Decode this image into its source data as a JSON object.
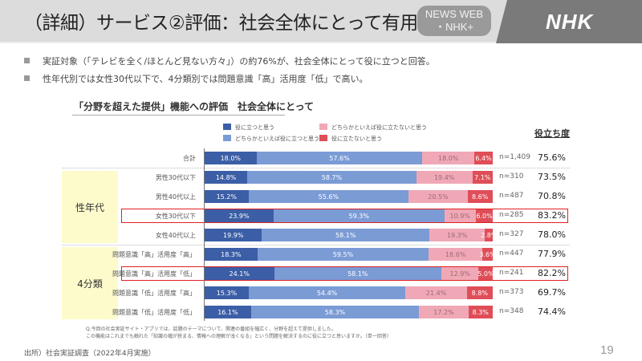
{
  "header": {
    "title": "（詳細）サービス②評価：社会全体にとって有用か",
    "badge_line1": "NEWS WEB",
    "badge_line2": "・NHK+",
    "logo": "NHK"
  },
  "bullets": [
    "実証対象（「テレビを全く/ほとんど見ない方々」）の約76%が、社会全体にとって役に立つと回答。",
    "性年代別では女性30代以下で、4分類別では問題意識「高」活用度「低」で高い。"
  ],
  "groups": [
    {
      "label": "性年代"
    },
    {
      "label": "4分類"
    }
  ],
  "colors": {
    "useful": "#3b5ea6",
    "somewhat_useful": "#7b9bd5",
    "somewhat_not_useful": "#f0a8b6",
    "not_useful": "#df4e58",
    "highlight": "#e02020"
  },
  "chart_data": {
    "type": "bar",
    "orientation": "horizontal-stacked",
    "title": "「分野を超えた提供」機能への評価　社会全体にとって",
    "legend": [
      "役に立つと思う",
      "どちらかといえば役に立つと思う",
      "どちらかといえば役に立たないと思う",
      "役に立たないと思う"
    ],
    "legend_position": "top",
    "useful_header": "役立ち度",
    "categories": [
      "合計",
      "男性30代以下",
      "男性40代以上",
      "女性30代以下",
      "女性40代以上",
      "問題意識「高」活用度「高」",
      "問題意識「高」活用度「低」",
      "問題意識「低」活用度「高」",
      "問題意識「低」活用度「低」"
    ],
    "series": [
      {
        "name": "役に立つと思う",
        "values": [
          18.0,
          14.8,
          15.2,
          23.9,
          19.9,
          18.3,
          24.1,
          15.3,
          16.1
        ]
      },
      {
        "name": "どちらかといえば役に立つと思う",
        "values": [
          57.6,
          58.7,
          55.6,
          59.3,
          58.1,
          59.5,
          58.1,
          54.4,
          58.3
        ]
      },
      {
        "name": "どちらかといえば役に立たないと思う",
        "values": [
          18.0,
          19.4,
          20.5,
          10.9,
          19.3,
          18.6,
          12.9,
          21.4,
          17.2
        ]
      },
      {
        "name": "役に立たないと思う",
        "values": [
          6.4,
          7.1,
          8.6,
          6.0,
          2.8,
          3.6,
          5.0,
          8.8,
          8.3
        ]
      }
    ],
    "n": [
      "n=1,409",
      "n=310",
      "n=487",
      "n=285",
      "n=327",
      "n=447",
      "n=241",
      "n=373",
      "n=348"
    ],
    "useful_rate": [
      "75.6%",
      "73.5%",
      "70.8%",
      "83.2%",
      "78.0%",
      "77.9%",
      "82.2%",
      "69.7%",
      "74.4%"
    ],
    "highlighted": [
      3,
      6
    ],
    "xlim": [
      0,
      100
    ],
    "value_suffix": "%"
  },
  "note": {
    "line1": "Q.今回の社会実証サイト・アプリでは、話題のテーマについて、関連の番組を幅広く、分野を超えて提供しました。",
    "line2": "この機能はこれまでも触れた「知識の幅が狭まる、情報への理解が浅くなる」という問題を解決するのに役に立つと思いますか。（単一回答）"
  },
  "source": "出所）社会実証調査（2022年4月実施）",
  "page_number": "19"
}
